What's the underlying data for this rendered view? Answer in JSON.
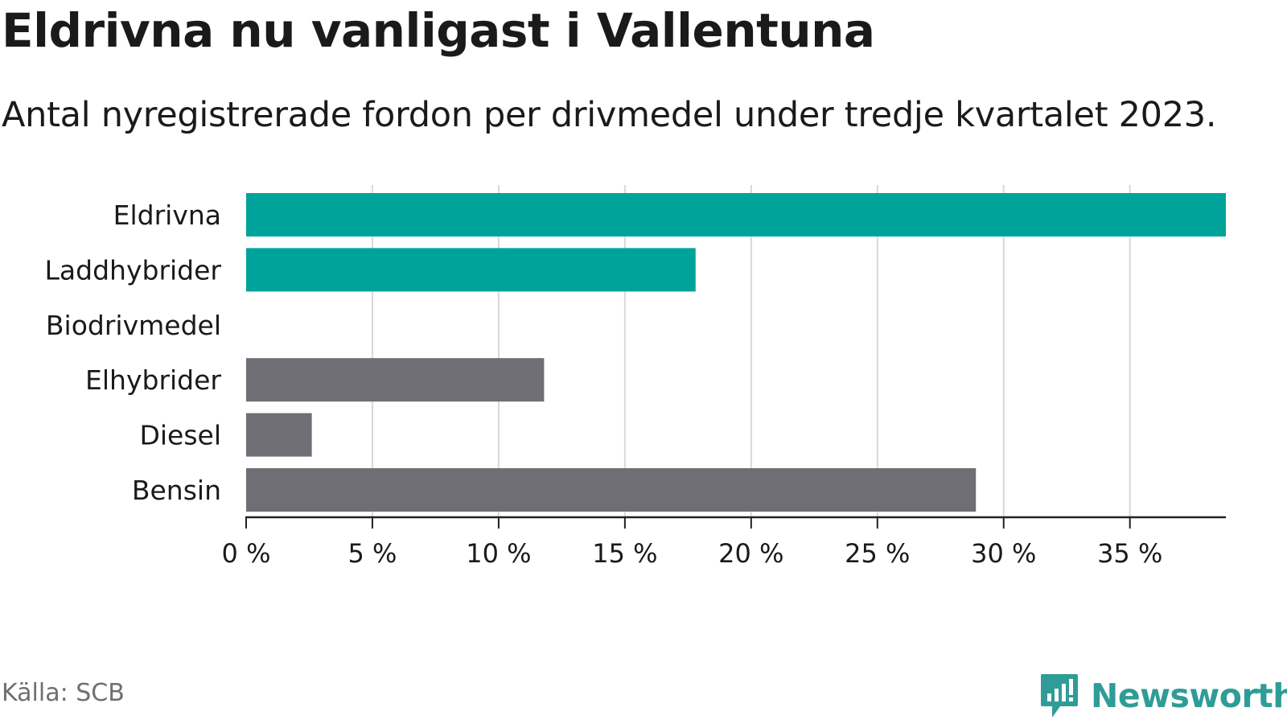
{
  "header": {
    "title": "Eldrivna nu vanligast i Vallentuna",
    "subtitle": "Antal nyregistrerade fordon per drivmedel under tredje kvartalet 2023."
  },
  "footer": {
    "source": "Källa: SCB",
    "brand": "Newsworthy"
  },
  "colors": {
    "highlight": "#00a39a",
    "default": "#6f6e75",
    "grid": "#d9d9d9",
    "axis": "#222222",
    "text": "#1a1a1a",
    "brand": "#2f9c97"
  },
  "chart_data": {
    "type": "bar",
    "orientation": "horizontal",
    "categories": [
      "Eldrivna",
      "Laddhybrider",
      "Biodrivmedel",
      "Elhybrider",
      "Diesel",
      "Bensin"
    ],
    "values": [
      38.8,
      17.8,
      0,
      11.8,
      2.6,
      28.9
    ],
    "highlight": [
      true,
      true,
      false,
      false,
      false,
      false
    ],
    "x_ticks": [
      0,
      5,
      10,
      15,
      20,
      25,
      30,
      35
    ],
    "x_tick_labels": [
      "0 %",
      "5 %",
      "10 %",
      "15 %",
      "20 %",
      "25 %",
      "30 %",
      "35 %"
    ],
    "xlim": [
      0,
      38.8
    ],
    "grid": true
  }
}
